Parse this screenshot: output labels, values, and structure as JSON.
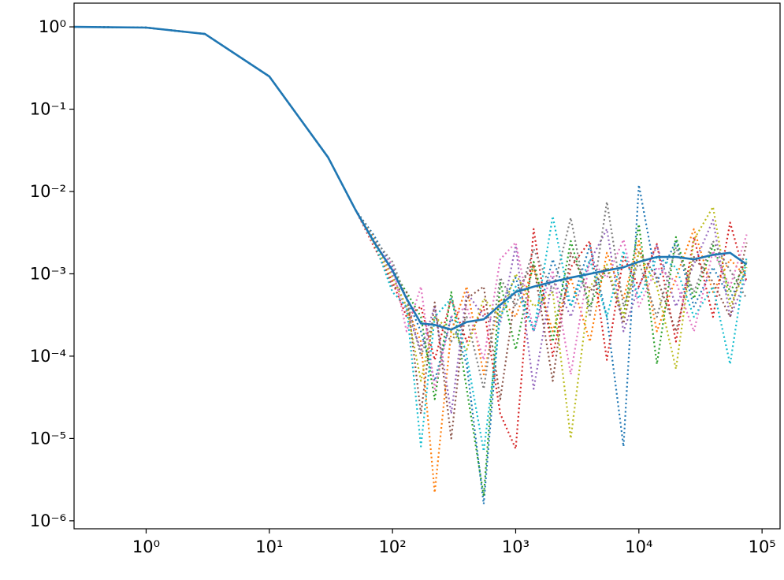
{
  "chart_data": {
    "type": "line",
    "xscale": "log",
    "yscale": "log",
    "xlim": [
      0.26,
      140000
    ],
    "ylim": [
      8e-07,
      1.94
    ],
    "xticks": [
      {
        "value": 1,
        "label": "10⁰"
      },
      {
        "value": 10,
        "label": "10¹"
      },
      {
        "value": 100,
        "label": "10²"
      },
      {
        "value": 1000,
        "label": "10³"
      },
      {
        "value": 10000,
        "label": "10⁴"
      },
      {
        "value": 100000,
        "label": "10⁵"
      }
    ],
    "yticks": [
      {
        "value": 1e-06,
        "label": "10⁻⁶"
      },
      {
        "value": 1e-05,
        "label": "10⁻⁵"
      },
      {
        "value": 0.0001,
        "label": "10⁻⁴"
      },
      {
        "value": 0.001,
        "label": "10⁻³"
      },
      {
        "value": 0.01,
        "label": "10⁻²"
      },
      {
        "value": 0.1,
        "label": "10⁻¹"
      },
      {
        "value": 1,
        "label": "10⁰"
      }
    ],
    "x": [
      0.26,
      1,
      3,
      10,
      30,
      50,
      70,
      100,
      130,
      170,
      220,
      300,
      400,
      550,
      750,
      1000,
      1400,
      2000,
      2800,
      4000,
      5500,
      7500,
      10000,
      14000,
      20000,
      28000,
      40000,
      55000,
      75000
    ],
    "series": [
      {
        "color": "#1f77b4",
        "style": "dotted",
        "values": [
          1.0,
          0.98,
          0.82,
          0.25,
          0.026,
          0.006,
          0.003,
          0.0012,
          0.0005,
          0.0002,
          5e-05,
          0.0003,
          8e-05,
          1.6e-06,
          0.0004,
          0.0009,
          0.0002,
          0.0015,
          0.0004,
          0.0022,
          0.0003,
          8e-06,
          0.012,
          0.0008,
          0.0025,
          0.0004,
          0.0012,
          0.0005,
          0.0011
        ]
      },
      {
        "color": "#ff7f0e",
        "style": "dotted",
        "values": [
          1.0,
          0.98,
          0.82,
          0.25,
          0.026,
          0.006,
          0.0028,
          0.0009,
          0.0004,
          0.00015,
          2.2e-06,
          0.0002,
          0.0007,
          6e-05,
          0.0005,
          0.0003,
          0.0012,
          0.0002,
          0.0009,
          0.00015,
          0.0018,
          0.0005,
          0.0025,
          0.0002,
          0.0009,
          0.0035,
          0.0006,
          0.0015,
          0.0009
        ]
      },
      {
        "color": "#2ca02c",
        "style": "dotted",
        "values": [
          1.0,
          0.98,
          0.82,
          0.25,
          0.026,
          0.006,
          0.0025,
          0.0011,
          0.0006,
          0.0003,
          3e-05,
          0.0006,
          4e-05,
          2e-06,
          0.0008,
          0.00012,
          0.0014,
          0.00015,
          0.0025,
          0.0004,
          0.0012,
          0.0003,
          0.004,
          8e-05,
          0.0028,
          0.0005,
          0.0022,
          0.0006,
          0.0014
        ]
      },
      {
        "color": "#d62728",
        "style": "dotted",
        "values": [
          1.0,
          0.98,
          0.82,
          0.25,
          0.026,
          0.006,
          0.0022,
          0.0008,
          0.0003,
          0.0004,
          9e-05,
          0.0005,
          0.00015,
          0.0004,
          2e-05,
          7.5e-06,
          0.0035,
          0.0001,
          0.0012,
          0.0025,
          9e-05,
          0.0016,
          0.0007,
          0.0023,
          0.00015,
          0.0028,
          0.0003,
          0.0042,
          0.0008
        ]
      },
      {
        "color": "#9467bd",
        "style": "dotted",
        "values": [
          1.0,
          0.98,
          0.82,
          0.25,
          0.026,
          0.006,
          0.0026,
          0.001,
          0.00035,
          0.00012,
          0.0004,
          2e-05,
          0.0006,
          0.0003,
          0.00025,
          0.0022,
          4e-05,
          0.0009,
          0.0003,
          0.0014,
          0.0035,
          0.0002,
          0.0007,
          0.0022,
          0.0004,
          0.0013,
          0.0045,
          0.0003,
          0.0009
        ]
      },
      {
        "color": "#8c564b",
        "style": "dotted",
        "values": [
          1.0,
          0.98,
          0.82,
          0.25,
          0.026,
          0.006,
          0.0024,
          0.0007,
          0.0006,
          2e-05,
          0.00045,
          1e-05,
          0.0005,
          0.0007,
          3e-05,
          0.0006,
          0.0013,
          5e-05,
          0.0018,
          0.0006,
          0.0012,
          0.00025,
          0.0019,
          0.0009,
          0.0002,
          0.0016,
          0.0008,
          0.0003,
          0.0024
        ]
      },
      {
        "color": "#e377c2",
        "style": "dotted",
        "values": [
          1.0,
          0.98,
          0.82,
          0.25,
          0.026,
          0.006,
          0.0023,
          0.0013,
          0.0002,
          0.0007,
          4e-05,
          0.0003,
          0.0004,
          9e-05,
          0.0015,
          0.0024,
          0.0002,
          0.0011,
          6e-05,
          0.0015,
          0.0009,
          0.0026,
          0.0004,
          0.0012,
          0.0008,
          0.0002,
          0.0019,
          0.0007,
          0.003
        ]
      },
      {
        "color": "#7f7f7f",
        "style": "dotted",
        "values": [
          1.0,
          0.98,
          0.82,
          0.25,
          0.026,
          0.006,
          0.0027,
          0.0014,
          0.0005,
          0.0001,
          0.0003,
          0.00015,
          0.0003,
          4e-05,
          0.0009,
          0.0004,
          0.002,
          0.0006,
          0.0048,
          0.0003,
          0.0075,
          0.0004,
          0.0014,
          0.0003,
          0.0021,
          0.0006,
          0.0025,
          0.0011,
          0.0005
        ]
      },
      {
        "color": "#bcbd22",
        "style": "dotted",
        "values": [
          1.0,
          0.98,
          0.82,
          0.25,
          0.026,
          0.006,
          0.0024,
          0.0009,
          0.0004,
          5e-05,
          0.0003,
          0.0002,
          0.00012,
          0.0005,
          0.0003,
          0.001,
          0.0004,
          0.0006,
          1e-05,
          0.0007,
          0.0013,
          0.0003,
          0.0018,
          0.0007,
          7e-05,
          0.0026,
          0.0065,
          0.0004,
          0.0012
        ]
      },
      {
        "color": "#17becf",
        "style": "dotted",
        "values": [
          1.0,
          0.98,
          0.82,
          0.25,
          0.026,
          0.006,
          0.0026,
          0.0006,
          0.0004,
          8e-06,
          0.0003,
          0.0005,
          0.0001,
          7e-06,
          0.0003,
          0.0007,
          0.0002,
          0.005,
          0.0004,
          0.0015,
          0.0003,
          0.0019,
          0.0005,
          0.0016,
          0.0012,
          0.0003,
          0.0007,
          8e-05,
          0.0016
        ]
      },
      {
        "color": "#1f77b4",
        "style": "solid",
        "values": [
          1.0,
          0.98,
          0.82,
          0.25,
          0.026,
          0.006,
          0.0025,
          0.0011,
          0.0005,
          0.00025,
          0.00024,
          0.00021,
          0.00026,
          0.00028,
          0.00042,
          0.0006,
          0.0007,
          0.0008,
          0.0009,
          0.001,
          0.0011,
          0.0012,
          0.0014,
          0.0016,
          0.0016,
          0.0015,
          0.0017,
          0.0018,
          0.0013
        ]
      }
    ]
  }
}
